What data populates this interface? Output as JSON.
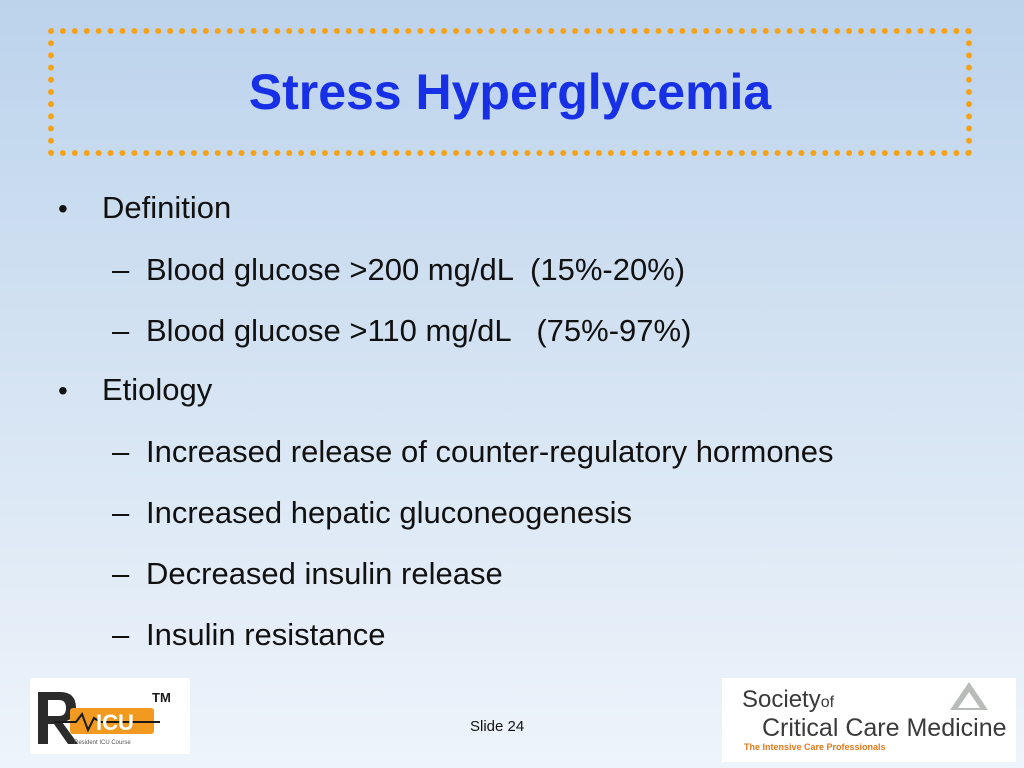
{
  "slide": {
    "title": "Stress Hyperglycemia",
    "bullets": [
      {
        "level": 1,
        "marker": "•",
        "text": "Definition"
      },
      {
        "level": 2,
        "marker": "–",
        "text": "Blood glucose >200 mg/dL  (15%-20%)"
      },
      {
        "level": 2,
        "marker": "–",
        "text": "Blood glucose >110 mg/dL   (75%-97%)"
      },
      {
        "level": 1,
        "marker": "•",
        "text": "Etiology"
      },
      {
        "level": 2,
        "marker": "–",
        "text": "Increased release of counter-regulatory hormones"
      },
      {
        "level": 2,
        "marker": "–",
        "text": "Increased hepatic gluconeogenesis"
      },
      {
        "level": 2,
        "marker": "–",
        "text": "Decreased insulin release"
      },
      {
        "level": 2,
        "marker": "–",
        "text": "Insulin resistance"
      }
    ]
  },
  "footer": {
    "slide_label": "Slide 24",
    "ricu_logo": {
      "text": "ICU",
      "tm": "TM",
      "tagline": "Resident ICU Course"
    },
    "sccm_logo": {
      "line1": "Society",
      "line1_small": "of",
      "line2": "Critical Care Medicine",
      "line3": "The Intensive Care Professionals"
    }
  },
  "colors": {
    "title": "#1730e6",
    "frame_dots": "#f5a21b",
    "background_top": "#bcd3ec",
    "background_bottom": "#eef4fb"
  }
}
